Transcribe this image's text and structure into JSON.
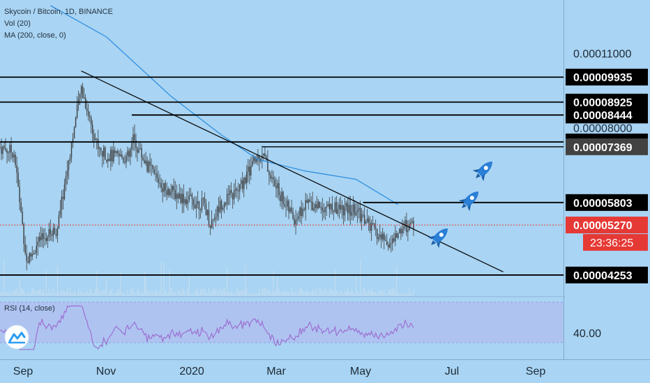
{
  "header": {
    "symbol_line": "Skycoin / Bitcoin, 1D, BINANCE",
    "volume_line": "Vol (20)",
    "ma_line": "MA (200, close, 0)"
  },
  "rsi": {
    "label": "RSI (14, close)",
    "axis_label": "40.00",
    "band_low": 30,
    "band_high": 70
  },
  "price_axis": {
    "grid_labels": [
      "0.00011000",
      "0.00008000",
      "0.00005270"
    ],
    "countdown": "23:36:25",
    "current_price": "0.00005270"
  },
  "time_axis": {
    "labels": [
      "Sep",
      "Nov",
      "2020",
      "Mar",
      "May",
      "Jul",
      "Sep"
    ]
  },
  "colors": {
    "background": "#a9d4f3",
    "candles": "#3c3c3c",
    "ma_line": "#2f8fe0",
    "rsi_line": "#9b6fd0",
    "rsi_band": "#b0bff0",
    "current_price": "#e53935",
    "level_label_bg": "#000000",
    "highlight_label_bg": "#424242"
  },
  "icons": [
    "rocket-icon",
    "rocket-icon",
    "rocket-icon",
    "tradingview-logo-icon"
  ],
  "chart_data": {
    "type": "candlestick",
    "title": "Skycoin / Bitcoin, 1D, BINANCE",
    "y_scale": "log",
    "ylim": [
      3.97e-05,
      0.000135
    ],
    "x_range": [
      "2019-08-15",
      "2020-09-20"
    ],
    "horizontal_levels": [
      {
        "value": "0.00009935",
        "start": "2019-08-15"
      },
      {
        "value": "0.00008925",
        "start": "2019-08-15"
      },
      {
        "value": "0.00008444",
        "start": "2019-11-17"
      },
      {
        "value": "0.00007524",
        "start": "2019-08-15"
      },
      {
        "value": "0.00007369",
        "start": "2020-02-18",
        "highlight": true
      },
      {
        "value": "0.00005803",
        "start": "2020-04-30"
      },
      {
        "value": "0.00004253",
        "start": "2019-08-15"
      }
    ],
    "trendline": [
      {
        "date": "2019-10-12",
        "value": 0.000102
      },
      {
        "date": "2020-08-08",
        "value": 4.31e-05
      }
    ],
    "ma200_approx": [
      {
        "date": "2019-09-20",
        "value": 0.000135
      },
      {
        "date": "2019-10-30",
        "value": 0.000118
      },
      {
        "date": "2019-12-15",
        "value": 9.15e-05
      },
      {
        "date": "2020-01-20",
        "value": 7.75e-05
      },
      {
        "date": "2020-02-15",
        "value": 6.98e-05
      },
      {
        "date": "2020-03-20",
        "value": 6.64e-05
      },
      {
        "date": "2020-04-25",
        "value": 6.41e-05
      },
      {
        "date": "2020-05-25",
        "value": 5.75e-05
      }
    ],
    "close_approx": [
      {
        "date": "2019-08-15",
        "value": 7.35e-05
      },
      {
        "date": "2019-08-25",
        "value": 7.2e-05
      },
      {
        "date": "2019-09-03",
        "value": 4.5e-05
      },
      {
        "date": "2019-09-12",
        "value": 4.9e-05
      },
      {
        "date": "2019-09-25",
        "value": 5.2e-05
      },
      {
        "date": "2019-10-05",
        "value": 7.5e-05
      },
      {
        "date": "2019-10-12",
        "value": 9.5e-05
      },
      {
        "date": "2019-10-18",
        "value": 8.3e-05
      },
      {
        "date": "2019-10-25",
        "value": 7.2e-05
      },
      {
        "date": "2019-11-05",
        "value": 7.05e-05
      },
      {
        "date": "2019-11-15",
        "value": 7.05e-05
      },
      {
        "date": "2019-11-18",
        "value": 7.6e-05
      },
      {
        "date": "2019-11-28",
        "value": 6.8e-05
      },
      {
        "date": "2019-12-10",
        "value": 6.2e-05
      },
      {
        "date": "2019-12-25",
        "value": 5.9e-05
      },
      {
        "date": "2020-01-08",
        "value": 5.75e-05
      },
      {
        "date": "2020-01-12",
        "value": 5.3e-05
      },
      {
        "date": "2020-01-20",
        "value": 5.8e-05
      },
      {
        "date": "2020-02-01",
        "value": 6.1e-05
      },
      {
        "date": "2020-02-12",
        "value": 6.9e-05
      },
      {
        "date": "2020-02-18",
        "value": 7.2e-05
      },
      {
        "date": "2020-02-25",
        "value": 6.4e-05
      },
      {
        "date": "2020-03-05",
        "value": 5.8e-05
      },
      {
        "date": "2020-03-12",
        "value": 5.4e-05
      },
      {
        "date": "2020-03-22",
        "value": 5.8e-05
      },
      {
        "date": "2020-04-10",
        "value": 5.65e-05
      },
      {
        "date": "2020-04-25",
        "value": 5.6e-05
      },
      {
        "date": "2020-05-01",
        "value": 5.4e-05
      },
      {
        "date": "2020-05-10",
        "value": 5.05e-05
      },
      {
        "date": "2020-05-20",
        "value": 4.85e-05
      },
      {
        "date": "2020-05-28",
        "value": 5.25e-05
      },
      {
        "date": "2020-06-05",
        "value": 5.27e-05
      }
    ]
  }
}
